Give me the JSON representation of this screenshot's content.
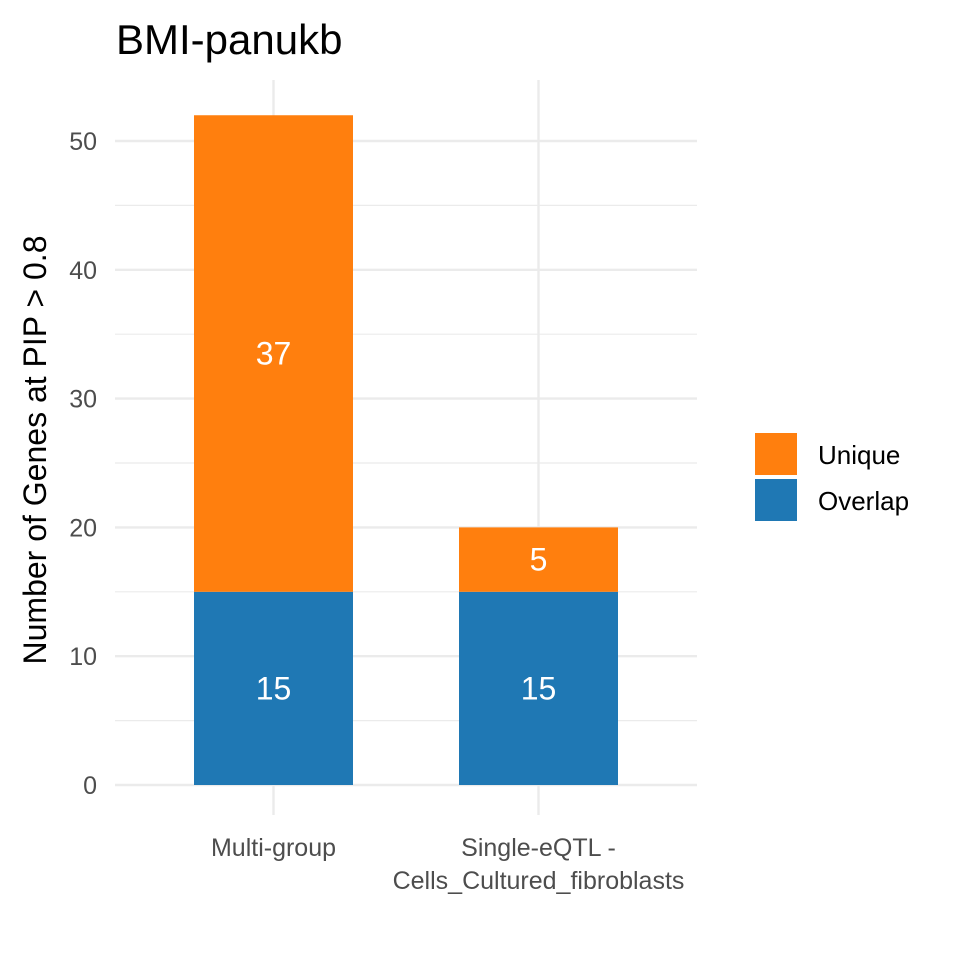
{
  "chart_data": {
    "type": "bar",
    "stacked": true,
    "title": "BMI-panukb",
    "xlabel": "",
    "ylabel": "Number of Genes at PIP > 0.8",
    "categories": [
      [
        "Multi-group"
      ],
      [
        "Single-eQTL -",
        "Cells_Cultured_fibroblasts"
      ]
    ],
    "series": [
      {
        "name": "Overlap",
        "values": [
          15,
          15
        ],
        "color": "#1f78b4"
      },
      {
        "name": "Unique",
        "values": [
          37,
          5
        ],
        "color": "#ff7f0e"
      }
    ],
    "legend_order": [
      "Unique",
      "Overlap"
    ],
    "legend_position": "right",
    "ylim": [
      0,
      55
    ],
    "yticks": [
      0,
      10,
      20,
      30,
      40,
      50
    ],
    "grid": true,
    "grid_color": "#ebebeb"
  }
}
